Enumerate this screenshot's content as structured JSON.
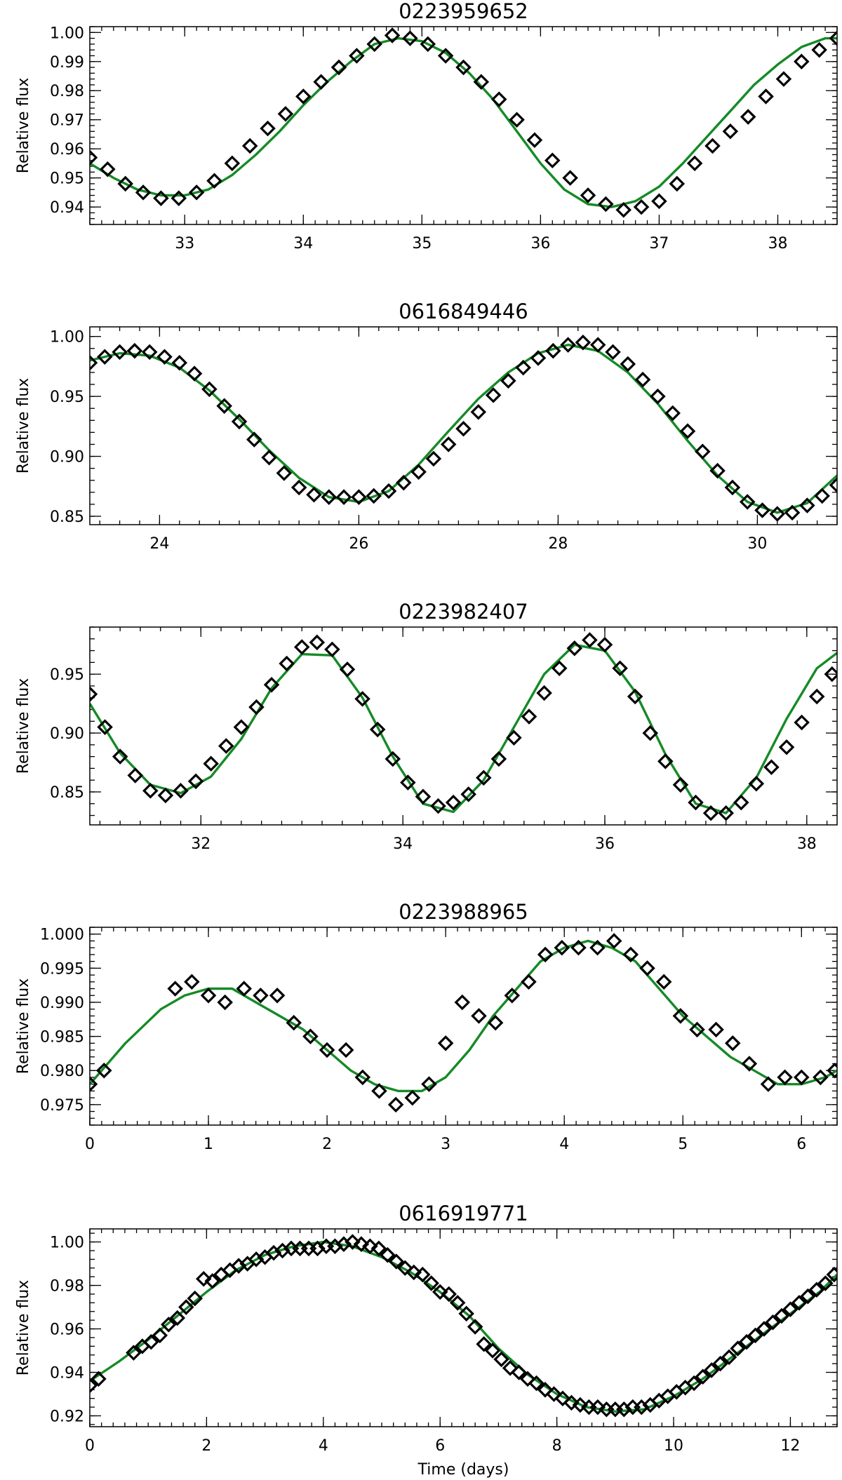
{
  "colors": {
    "model_line": "#158a26",
    "markers": "#000000",
    "axes": "#000000",
    "background": "#ffffff"
  },
  "x_axis_title": "Time (days)",
  "chart_data": [
    {
      "type": "scatter",
      "title": "0223959652",
      "ylabel": "Relative flux",
      "xlabel": "",
      "xlim": [
        32.2,
        38.5
      ],
      "ylim": [
        0.934,
        1.002
      ],
      "xticks": [
        "33",
        "34",
        "35",
        "36",
        "37",
        "38"
      ],
      "yticks": [
        "0.94",
        "0.95",
        "0.96",
        "0.97",
        "0.98",
        "0.99",
        "1.00"
      ],
      "marker": "diamond",
      "series": [
        {
          "kind": "observed",
          "x": [
            32.2,
            32.35,
            32.5,
            32.65,
            32.8,
            32.95,
            33.1,
            33.25,
            33.4,
            33.55,
            33.7,
            33.85,
            34.0,
            34.15,
            34.3,
            34.45,
            34.6,
            34.75,
            34.9,
            35.05,
            35.2,
            35.35,
            35.5,
            35.65,
            35.8,
            35.95,
            36.1,
            36.25,
            36.4,
            36.55,
            36.7,
            36.85,
            37.0,
            37.15,
            37.3,
            37.45,
            37.6,
            37.75,
            37.9,
            38.05,
            38.2,
            38.35,
            38.5
          ],
          "y": [
            0.957,
            0.953,
            0.948,
            0.945,
            0.943,
            0.943,
            0.945,
            0.949,
            0.955,
            0.961,
            0.967,
            0.972,
            0.978,
            0.983,
            0.988,
            0.992,
            0.996,
            0.999,
            0.998,
            0.996,
            0.992,
            0.988,
            0.983,
            0.977,
            0.97,
            0.963,
            0.956,
            0.95,
            0.944,
            0.941,
            0.939,
            0.94,
            0.942,
            0.948,
            0.955,
            0.961,
            0.966,
            0.971,
            0.978,
            0.984,
            0.99,
            0.994,
            0.998
          ]
        },
        {
          "kind": "model",
          "x": [
            32.2,
            32.4,
            32.6,
            32.8,
            33.0,
            33.2,
            33.4,
            33.6,
            33.8,
            34.0,
            34.2,
            34.4,
            34.6,
            34.8,
            35.0,
            35.2,
            35.4,
            35.6,
            35.8,
            36.0,
            36.2,
            36.4,
            36.6,
            36.8,
            37.0,
            37.2,
            37.4,
            37.6,
            37.8,
            38.0,
            38.2,
            38.4,
            38.5
          ],
          "y": [
            0.955,
            0.95,
            0.946,
            0.944,
            0.944,
            0.946,
            0.951,
            0.958,
            0.966,
            0.975,
            0.983,
            0.99,
            0.996,
            0.998,
            0.997,
            0.993,
            0.986,
            0.977,
            0.966,
            0.955,
            0.946,
            0.941,
            0.94,
            0.942,
            0.947,
            0.955,
            0.964,
            0.973,
            0.982,
            0.989,
            0.995,
            0.998,
            0.998
          ]
        }
      ]
    },
    {
      "type": "scatter",
      "title": "0616849446",
      "ylabel": "Relative flux",
      "xlabel": "",
      "xlim": [
        23.3,
        30.8
      ],
      "ylim": [
        0.843,
        1.008
      ],
      "xticks": [
        "24",
        "26",
        "28",
        "30"
      ],
      "yticks": [
        "0.85",
        "0.90",
        "0.95",
        "1.00"
      ],
      "marker": "diamond",
      "series": [
        {
          "kind": "observed",
          "x": [
            23.3,
            23.45,
            23.6,
            23.75,
            23.9,
            24.05,
            24.2,
            24.35,
            24.5,
            24.65,
            24.8,
            24.95,
            25.1,
            25.25,
            25.4,
            25.55,
            25.7,
            25.85,
            26.0,
            26.15,
            26.3,
            26.45,
            26.6,
            26.75,
            26.9,
            27.05,
            27.2,
            27.35,
            27.5,
            27.65,
            27.8,
            27.95,
            28.1,
            28.25,
            28.4,
            28.55,
            28.7,
            28.85,
            29.0,
            29.15,
            29.3,
            29.45,
            29.6,
            29.75,
            29.9,
            30.05,
            30.2,
            30.35,
            30.5,
            30.65,
            30.8
          ],
          "y": [
            0.978,
            0.983,
            0.987,
            0.988,
            0.987,
            0.983,
            0.978,
            0.969,
            0.956,
            0.942,
            0.929,
            0.914,
            0.899,
            0.886,
            0.874,
            0.868,
            0.866,
            0.866,
            0.866,
            0.867,
            0.871,
            0.878,
            0.887,
            0.898,
            0.91,
            0.923,
            0.937,
            0.951,
            0.963,
            0.974,
            0.982,
            0.988,
            0.993,
            0.995,
            0.993,
            0.987,
            0.977,
            0.964,
            0.95,
            0.936,
            0.921,
            0.904,
            0.888,
            0.874,
            0.862,
            0.855,
            0.852,
            0.853,
            0.859,
            0.867,
            0.876
          ]
        },
        {
          "kind": "model",
          "x": [
            23.3,
            23.6,
            23.9,
            24.2,
            24.5,
            24.8,
            25.1,
            25.4,
            25.7,
            26.0,
            26.3,
            26.6,
            26.9,
            27.2,
            27.5,
            27.8,
            28.1,
            28.4,
            28.7,
            29.0,
            29.3,
            29.6,
            29.9,
            30.2,
            30.5,
            30.8
          ],
          "y": [
            0.98,
            0.986,
            0.984,
            0.974,
            0.955,
            0.931,
            0.905,
            0.882,
            0.866,
            0.862,
            0.871,
            0.893,
            0.921,
            0.948,
            0.97,
            0.986,
            0.993,
            0.988,
            0.97,
            0.944,
            0.913,
            0.884,
            0.862,
            0.853,
            0.861,
            0.884
          ]
        }
      ]
    },
    {
      "type": "scatter",
      "title": "0223982407",
      "ylabel": "Relative flux",
      "xlabel": "",
      "xlim": [
        30.9,
        38.3
      ],
      "ylim": [
        0.822,
        0.99
      ],
      "xticks": [
        "32",
        "34",
        "36",
        "38"
      ],
      "yticks": [
        "0.85",
        "0.90",
        "0.95"
      ],
      "marker": "diamond",
      "series": [
        {
          "kind": "observed",
          "x": [
            30.9,
            31.05,
            31.2,
            31.35,
            31.5,
            31.65,
            31.8,
            31.95,
            32.1,
            32.25,
            32.4,
            32.55,
            32.7,
            32.85,
            33.0,
            33.15,
            33.3,
            33.45,
            33.6,
            33.75,
            33.9,
            34.05,
            34.2,
            34.35,
            34.5,
            34.65,
            34.8,
            34.95,
            35.1,
            35.25,
            35.4,
            35.55,
            35.7,
            35.85,
            36.0,
            36.15,
            36.3,
            36.45,
            36.6,
            36.75,
            36.9,
            37.05,
            37.2,
            37.35,
            37.5,
            37.65,
            37.8,
            37.95,
            38.1,
            38.25
          ],
          "y": [
            0.933,
            0.905,
            0.88,
            0.864,
            0.851,
            0.847,
            0.851,
            0.859,
            0.874,
            0.889,
            0.905,
            0.922,
            0.941,
            0.959,
            0.973,
            0.977,
            0.971,
            0.954,
            0.929,
            0.903,
            0.878,
            0.858,
            0.846,
            0.838,
            0.841,
            0.848,
            0.862,
            0.878,
            0.896,
            0.914,
            0.934,
            0.955,
            0.972,
            0.979,
            0.975,
            0.955,
            0.931,
            0.9,
            0.876,
            0.856,
            0.841,
            0.832,
            0.832,
            0.841,
            0.857,
            0.871,
            0.888,
            0.909,
            0.931,
            0.95
          ]
        },
        {
          "kind": "model",
          "x": [
            30.9,
            31.2,
            31.5,
            31.8,
            32.1,
            32.4,
            32.7,
            33.0,
            33.3,
            33.6,
            33.9,
            34.2,
            34.5,
            34.8,
            35.1,
            35.4,
            35.7,
            36.0,
            36.3,
            36.6,
            36.9,
            37.2,
            37.5,
            37.8,
            38.1,
            38.3
          ],
          "y": [
            0.925,
            0.883,
            0.856,
            0.849,
            0.863,
            0.895,
            0.938,
            0.967,
            0.966,
            0.93,
            0.88,
            0.84,
            0.833,
            0.86,
            0.905,
            0.95,
            0.975,
            0.97,
            0.935,
            0.882,
            0.84,
            0.832,
            0.862,
            0.912,
            0.955,
            0.968
          ]
        }
      ]
    },
    {
      "type": "scatter",
      "title": "0223988965",
      "ylabel": "Relative flux",
      "xlabel": "",
      "xlim": [
        0,
        6.3
      ],
      "ylim": [
        0.972,
        1.001
      ],
      "xticks": [
        "0",
        "1",
        "2",
        "3",
        "4",
        "5",
        "6"
      ],
      "yticks": [
        "0.975",
        "0.980",
        "0.985",
        "0.990",
        "0.995",
        "1.000"
      ],
      "marker": "diamond",
      "series": [
        {
          "kind": "observed",
          "x": [
            0.0,
            0.12,
            0.72,
            0.86,
            1.0,
            1.14,
            1.3,
            1.44,
            1.58,
            1.72,
            1.86,
            2.0,
            2.16,
            2.3,
            2.44,
            2.58,
            2.72,
            2.86,
            3.0,
            3.14,
            3.28,
            3.42,
            3.56,
            3.7,
            3.84,
            3.98,
            4.12,
            4.28,
            4.42,
            4.56,
            4.7,
            4.84,
            4.98,
            5.12,
            5.28,
            5.42,
            5.56,
            5.72,
            5.86,
            6.0,
            6.16,
            6.28
          ],
          "y": [
            0.978,
            0.98,
            0.992,
            0.993,
            0.991,
            0.99,
            0.992,
            0.991,
            0.991,
            0.987,
            0.985,
            0.983,
            0.983,
            0.979,
            0.977,
            0.975,
            0.976,
            0.978,
            0.984,
            0.99,
            0.988,
            0.987,
            0.991,
            0.993,
            0.997,
            0.998,
            0.998,
            0.998,
            0.999,
            0.997,
            0.995,
            0.993,
            0.988,
            0.986,
            0.986,
            0.984,
            0.981,
            0.978,
            0.979,
            0.979,
            0.979,
            0.98
          ]
        },
        {
          "kind": "model",
          "x": [
            0.0,
            0.3,
            0.6,
            0.8,
            1.0,
            1.2,
            1.4,
            1.6,
            1.8,
            2.0,
            2.2,
            2.4,
            2.6,
            2.8,
            3.0,
            3.2,
            3.4,
            3.6,
            3.8,
            4.0,
            4.2,
            4.4,
            4.6,
            4.8,
            5.0,
            5.2,
            5.4,
            5.6,
            5.8,
            6.0,
            6.2,
            6.3
          ],
          "y": [
            0.978,
            0.984,
            0.989,
            0.991,
            0.992,
            0.992,
            0.99,
            0.988,
            0.986,
            0.983,
            0.98,
            0.978,
            0.977,
            0.977,
            0.979,
            0.983,
            0.988,
            0.992,
            0.996,
            0.998,
            0.999,
            0.998,
            0.996,
            0.992,
            0.988,
            0.985,
            0.982,
            0.98,
            0.978,
            0.978,
            0.979,
            0.98
          ]
        }
      ]
    },
    {
      "type": "scatter",
      "title": "0616919771",
      "ylabel": "Relative flux",
      "xlabel": "Time (days)",
      "xlim": [
        0,
        12.8
      ],
      "ylim": [
        0.915,
        1.006
      ],
      "xticks": [
        "0",
        "2",
        "4",
        "6",
        "8",
        "10",
        "12"
      ],
      "yticks": [
        "0.92",
        "0.94",
        "0.96",
        "0.98",
        "1.00"
      ],
      "marker": "diamond",
      "series": [
        {
          "kind": "observed",
          "x": [
            0.0,
            0.15,
            0.75,
            0.9,
            1.05,
            1.2,
            1.35,
            1.5,
            1.65,
            1.8,
            1.95,
            2.1,
            2.25,
            2.4,
            2.55,
            2.7,
            2.85,
            3.0,
            3.15,
            3.3,
            3.45,
            3.6,
            3.75,
            3.9,
            4.05,
            4.2,
            4.35,
            4.5,
            4.65,
            4.8,
            4.95,
            5.1,
            5.25,
            5.4,
            5.55,
            5.7,
            5.85,
            6.0,
            6.15,
            6.3,
            6.45,
            6.6,
            6.75,
            6.9,
            7.05,
            7.2,
            7.35,
            7.5,
            7.65,
            7.8,
            7.95,
            8.1,
            8.25,
            8.4,
            8.55,
            8.7,
            8.85,
            9.0,
            9.15,
            9.3,
            9.45,
            9.6,
            9.75,
            9.9,
            10.05,
            10.2,
            10.35,
            10.5,
            10.65,
            10.8,
            10.95,
            11.1,
            11.25,
            11.4,
            11.55,
            11.7,
            11.85,
            12.0,
            12.15,
            12.3,
            12.45,
            12.6,
            12.75
          ],
          "y": [
            0.934,
            0.937,
            0.949,
            0.952,
            0.954,
            0.957,
            0.962,
            0.965,
            0.97,
            0.974,
            0.983,
            0.982,
            0.985,
            0.987,
            0.989,
            0.99,
            0.992,
            0.993,
            0.995,
            0.996,
            0.997,
            0.997,
            0.997,
            0.997,
            0.998,
            0.998,
            0.999,
            1.0,
            0.999,
            0.998,
            0.997,
            0.994,
            0.991,
            0.988,
            0.986,
            0.985,
            0.981,
            0.977,
            0.976,
            0.972,
            0.967,
            0.961,
            0.953,
            0.95,
            0.946,
            0.942,
            0.94,
            0.937,
            0.935,
            0.932,
            0.93,
            0.928,
            0.926,
            0.925,
            0.924,
            0.924,
            0.923,
            0.923,
            0.923,
            0.924,
            0.924,
            0.925,
            0.927,
            0.929,
            0.931,
            0.933,
            0.935,
            0.938,
            0.941,
            0.944,
            0.947,
            0.951,
            0.954,
            0.957,
            0.96,
            0.963,
            0.966,
            0.969,
            0.972,
            0.975,
            0.978,
            0.981,
            0.985
          ]
        },
        {
          "kind": "model",
          "x": [
            0.0,
            0.5,
            1.0,
            1.5,
            2.0,
            2.5,
            3.0,
            3.5,
            4.0,
            4.5,
            5.0,
            5.5,
            6.0,
            6.5,
            7.0,
            7.5,
            8.0,
            8.5,
            9.0,
            9.5,
            10.0,
            10.5,
            11.0,
            11.5,
            12.0,
            12.5,
            12.8
          ],
          "y": [
            0.936,
            0.945,
            0.955,
            0.966,
            0.977,
            0.987,
            0.994,
            0.998,
            1.0,
            0.998,
            0.993,
            0.986,
            0.977,
            0.966,
            0.951,
            0.939,
            0.93,
            0.924,
            0.922,
            0.923,
            0.929,
            0.937,
            0.947,
            0.957,
            0.967,
            0.977,
            0.985
          ]
        }
      ]
    }
  ]
}
